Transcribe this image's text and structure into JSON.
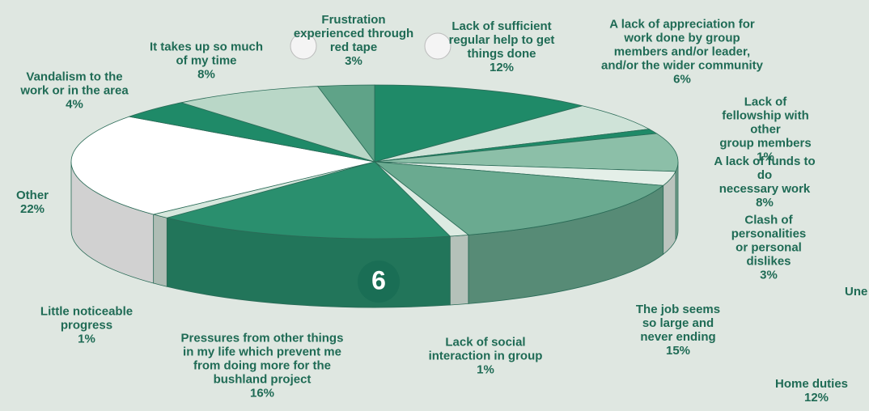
{
  "chart_data": {
    "type": "pie3d",
    "categories": [
      "Lack of sufficient\nregular help to get\nthings done",
      "A lack of appreciation for\nwork done by group\nmembers and/or leader,\nand/or the wider community",
      "Lack of fellowship with other\ngroup members",
      "A lack of funds to do\nnecessary work",
      "Clash of personalities\nor personal dislikes",
      "The job seems\nso large and\nnever ending",
      "Lack of social\ninteraction in group",
      "Pressures from other things\nin my life which prevent me\nfrom doing more for the\nbushland project",
      "Little noticeable\nprogress",
      "Other",
      "Vandalism to the\nwork or in the area",
      "It takes up so much\nof my time",
      "Frustration\nexperienced through\nred tape"
    ],
    "values": [
      12,
      6,
      1,
      8,
      3,
      15,
      1,
      16,
      1,
      22,
      4,
      8,
      3
    ],
    "value_labels": [
      "12%",
      "6%",
      "1%",
      "8%",
      "3%",
      "15%",
      "1%",
      "16%",
      "1%",
      "22%",
      "4%",
      "8%",
      "3%"
    ],
    "colors": [
      "#1f8a68",
      "#cfe3d8",
      "#1f8a68",
      "#8cbfa8",
      "#e4efe8",
      "#6aaa90",
      "#dcebe2",
      "#2a8f6e",
      "#d6e7dd",
      "#ffffff",
      "#1f8a68",
      "#b9d7c7",
      "#5fa388"
    ],
    "annotations": [
      "6",
      "Une",
      "Home duties",
      "12%"
    ]
  }
}
